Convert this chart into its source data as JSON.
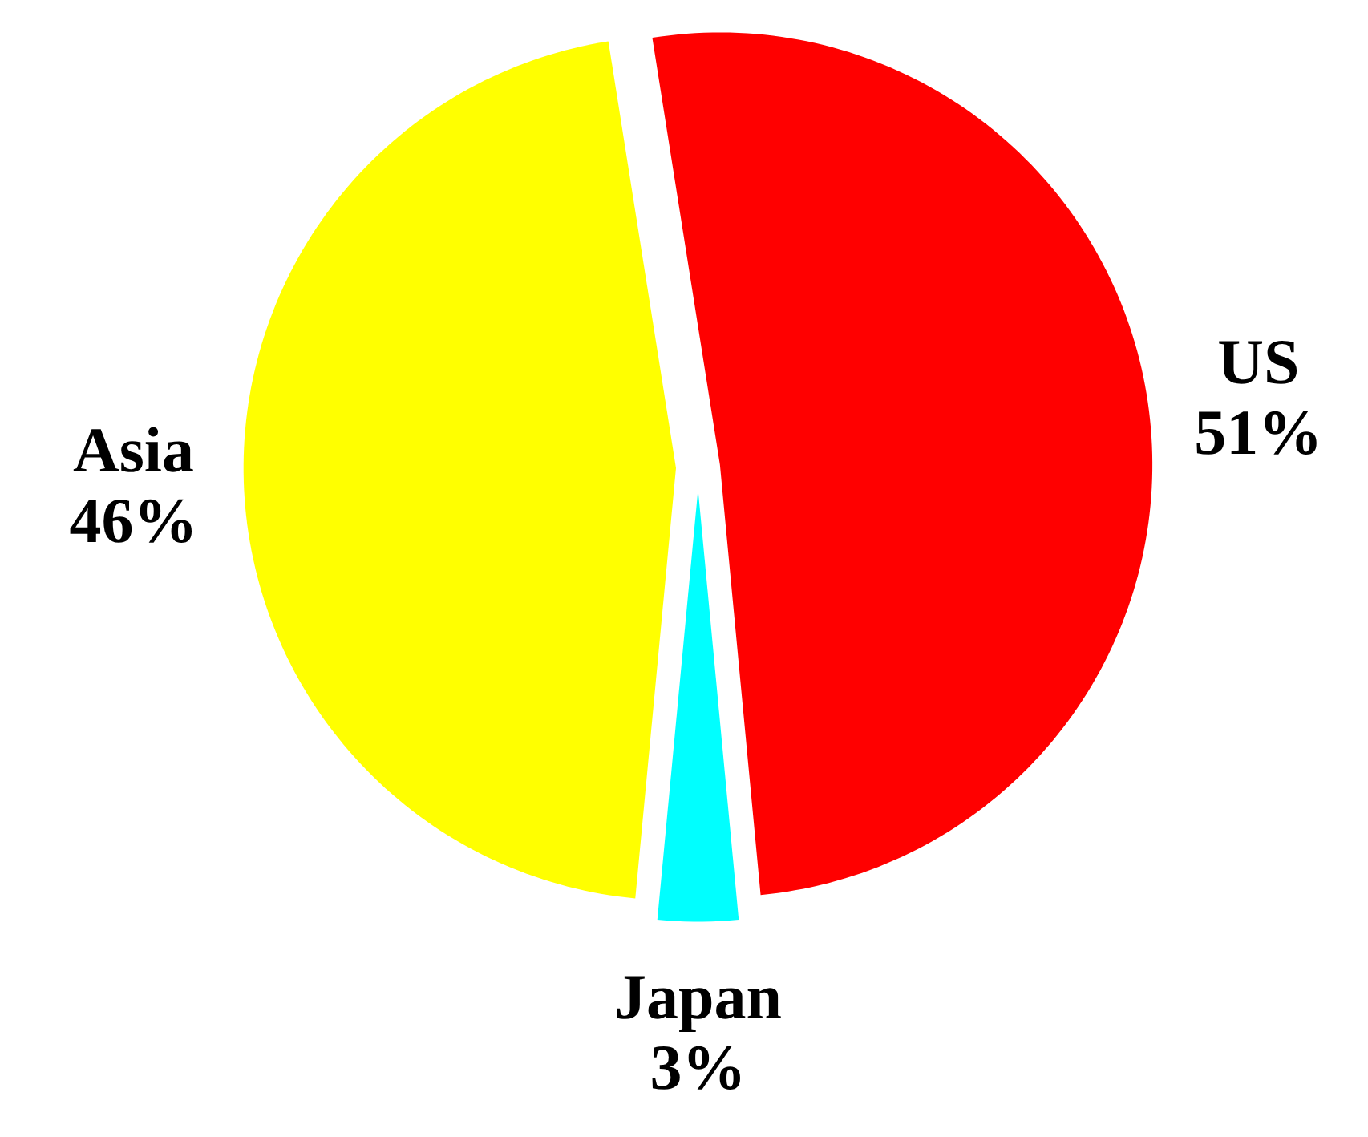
{
  "chart_data": {
    "type": "pie",
    "categories": [
      "US",
      "Japan",
      "Asia"
    ],
    "values": [
      51,
      3,
      46
    ],
    "value_labels": [
      "51%",
      "3%",
      "46%"
    ],
    "colors": [
      "#ff0000",
      "#00ffff",
      "#ffff00"
    ]
  }
}
